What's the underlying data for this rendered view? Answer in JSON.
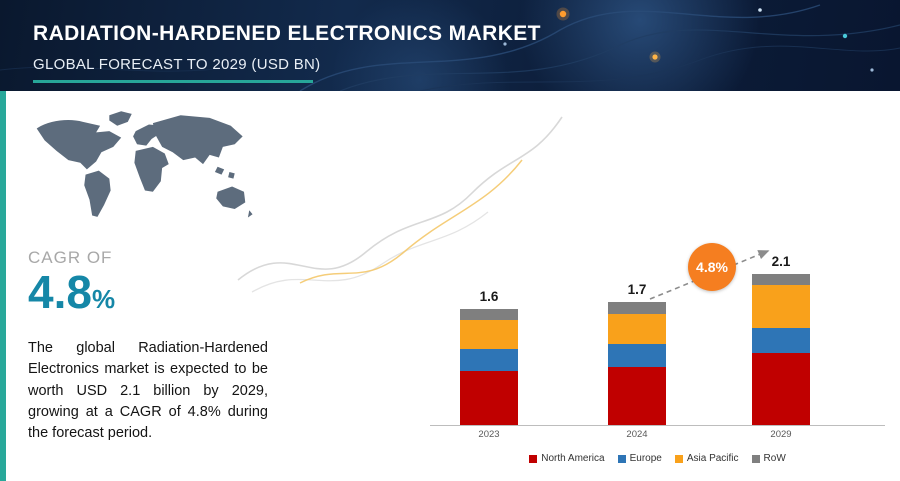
{
  "header": {
    "title": "RADIATION-HARDENED ELECTRONICS MARKET",
    "subtitle": "GLOBAL FORECAST TO 2029 (USD BN)",
    "accent_color": "#27a699"
  },
  "cagr": {
    "label": "CAGR OF",
    "value": "4.8",
    "percent_sign": "%",
    "value_color": "#1587a7"
  },
  "description": "The global Radiation-Hardened Electronics market is expected to be worth USD 2.1 billion by 2029, growing at a CAGR of 4.8% during the forecast period.",
  "badge": {
    "text": "4.8%",
    "color": "#f57e20"
  },
  "chart_data": {
    "type": "bar",
    "stacked": true,
    "title": "",
    "xlabel": "",
    "ylabel": "",
    "ylim": [
      0,
      2.4
    ],
    "grid": false,
    "legend_position": "bottom",
    "categories": [
      "2023",
      "2024",
      "2029"
    ],
    "bar_labels": [
      "1.6",
      "1.7",
      "2.1"
    ],
    "totals": [
      1.6,
      1.7,
      2.1
    ],
    "series": [
      {
        "name": "North America",
        "color": "#c00000",
        "values": [
          0.75,
          0.8,
          1.0
        ]
      },
      {
        "name": "Europe",
        "color": "#2e75b6",
        "values": [
          0.3,
          0.32,
          0.35
        ]
      },
      {
        "name": "Asia Pacific",
        "color": "#f9a11b",
        "values": [
          0.4,
          0.42,
          0.6
        ]
      },
      {
        "name": "RoW",
        "color": "#7f7f7f",
        "values": [
          0.15,
          0.16,
          0.15
        ]
      }
    ],
    "annotation": {
      "text": "4.8%",
      "meaning": "CAGR 2024-2029"
    }
  }
}
